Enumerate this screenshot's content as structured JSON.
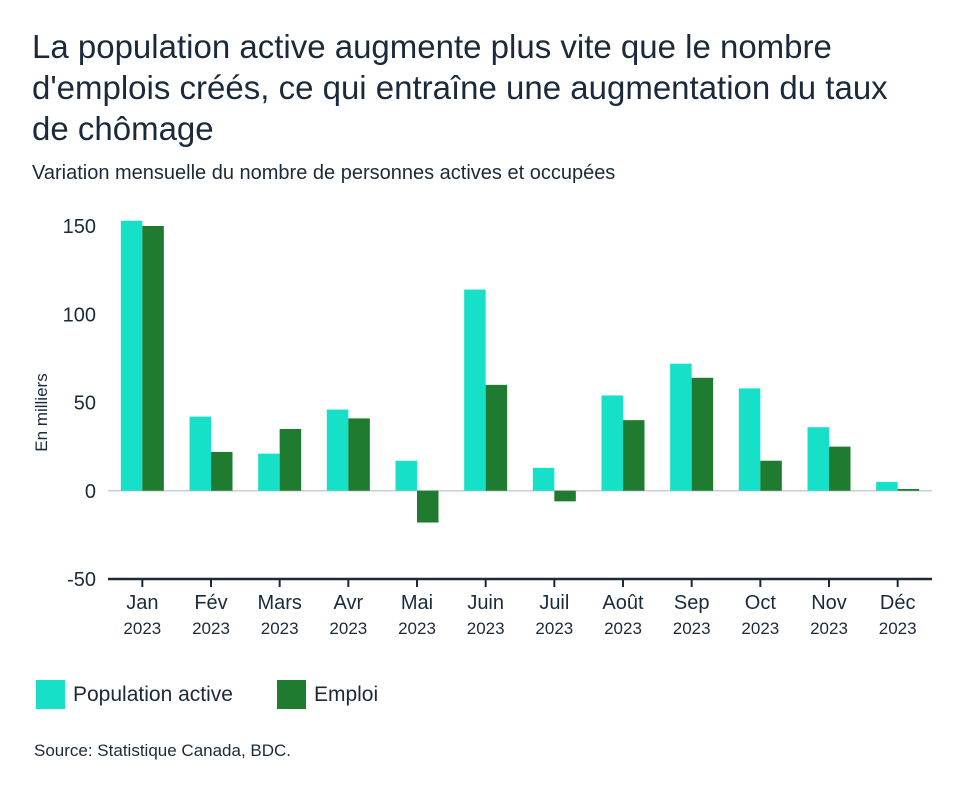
{
  "title": "La population active augmente plus vite que le nombre d'emplois créés, ce qui entraîne une augmentation du taux de chômage",
  "subtitle": "Variation mensuelle du nombre de personnes actives et occupées",
  "source": "Source: Statistique Canada, BDC.",
  "colors": {
    "population": "#17e0c8",
    "emploi": "#1e7b30",
    "axis": "#1b2a3a",
    "zero": "#c9ced3"
  },
  "chart_data": {
    "type": "bar",
    "ylabel": "En milliers",
    "ylim": [
      -50,
      150
    ],
    "yticks": [
      150,
      100,
      50,
      0,
      -50
    ],
    "categories": [
      {
        "month": "Jan",
        "year": "2023"
      },
      {
        "month": "Fév",
        "year": "2023"
      },
      {
        "month": "Mars",
        "year": "2023"
      },
      {
        "month": "Avr",
        "year": "2023"
      },
      {
        "month": "Mai",
        "year": "2023"
      },
      {
        "month": "Juin",
        "year": "2023"
      },
      {
        "month": "Juil",
        "year": "2023"
      },
      {
        "month": "Août",
        "year": "2023"
      },
      {
        "month": "Sep",
        "year": "2023"
      },
      {
        "month": "Oct",
        "year": "2023"
      },
      {
        "month": "Nov",
        "year": "2023"
      },
      {
        "month": "Déc",
        "year": "2023"
      }
    ],
    "series": [
      {
        "name": "Population active",
        "color": "#17e0c8",
        "values": [
          153,
          42,
          21,
          46,
          17,
          114,
          13,
          54,
          72,
          58,
          36,
          5
        ]
      },
      {
        "name": "Emploi",
        "color": "#1e7b30",
        "values": [
          150,
          22,
          35,
          41,
          -18,
          60,
          -6,
          40,
          64,
          17,
          25,
          1
        ]
      }
    ]
  }
}
